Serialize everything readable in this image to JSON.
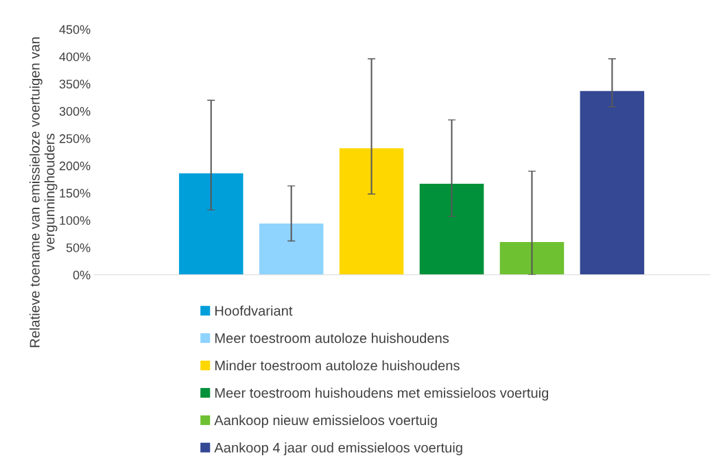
{
  "chart_data": {
    "type": "bar",
    "stacked": true,
    "ylabel": "Relatieve toename van emissieloze voertuigen van vergunninghouders",
    "categories": [
      null,
      null,
      null,
      null,
      null,
      null
    ],
    "series": [
      {
        "name": "Hoofdvariant",
        "color": "#009fda",
        "values": [
          186,
          null,
          null,
          null,
          null,
          null
        ],
        "errors": [
          [
            119,
            320
          ],
          null,
          null,
          null,
          null,
          null
        ]
      },
      {
        "name": "Meer toestroom autoloze huishoudens",
        "color": "#8fd3ff",
        "values": [
          null,
          94,
          null,
          null,
          null,
          null
        ],
        "errors": [
          null,
          [
            62,
            163
          ],
          null,
          null,
          null,
          null
        ]
      },
      {
        "name": "Minder toestroom autoloze huishoudens",
        "color": "#ffd700",
        "values": [
          null,
          null,
          232,
          null,
          null,
          null
        ],
        "errors": [
          null,
          null,
          [
            148,
            396
          ],
          null,
          null,
          null
        ]
      },
      {
        "name": "Meer toestroom huishoudens met emissieloos voertuig",
        "color": "#00913a",
        "values": [
          null,
          null,
          null,
          167,
          null,
          null
        ],
        "errors": [
          null,
          null,
          null,
          [
            107,
            284
          ],
          null,
          null
        ]
      },
      {
        "name": "Aankoop nieuw emissieloos voertuig",
        "color": "#6ec131",
        "values": [
          null,
          null,
          null,
          null,
          60,
          null
        ],
        "errors": [
          null,
          null,
          null,
          null,
          [
            0,
            190
          ],
          null
        ]
      },
      {
        "name": "Aankoop 4 jaar oud emissieloos voertuig",
        "color": "#344894",
        "values": [
          null,
          null,
          null,
          null,
          null,
          337
        ],
        "errors": [
          null,
          null,
          null,
          null,
          null,
          [
            308,
            396
          ]
        ]
      }
    ],
    "ylim": [
      0,
      450
    ],
    "yticks": [
      {
        "value": 0,
        "label": "0%"
      },
      {
        "value": 50,
        "label": "50%"
      },
      {
        "value": 100,
        "label": "100%"
      },
      {
        "value": 150,
        "label": "150%"
      },
      {
        "value": 200,
        "label": "200%"
      },
      {
        "value": 250,
        "label": "250%"
      },
      {
        "value": 300,
        "label": "300%"
      },
      {
        "value": 350,
        "label": "350%"
      },
      {
        "value": 400,
        "label": "400%"
      },
      {
        "value": 450,
        "label": "450%"
      }
    ],
    "grid": false,
    "legend": "bottom",
    "tick_labels": "y"
  }
}
